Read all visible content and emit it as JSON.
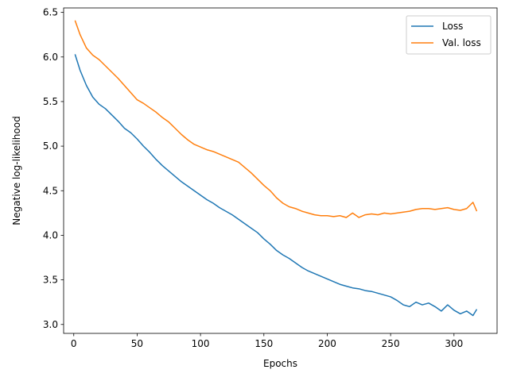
{
  "chart_data": {
    "type": "line",
    "title": "",
    "xlabel": "Epochs",
    "ylabel": "Negative log-likelihood",
    "xlim": [
      -8,
      334
    ],
    "ylim": [
      2.9,
      6.55
    ],
    "xticks": [
      0,
      50,
      100,
      150,
      200,
      250,
      300
    ],
    "yticks": [
      3.0,
      3.5,
      4.0,
      4.5,
      5.0,
      5.5,
      6.0,
      6.5
    ],
    "grid": false,
    "legend_position": "top-right",
    "series": [
      {
        "name": "Loss",
        "color": "#1f77b4",
        "x": [
          1,
          5,
          10,
          15,
          20,
          25,
          30,
          35,
          40,
          45,
          50,
          55,
          60,
          65,
          70,
          75,
          80,
          85,
          90,
          95,
          100,
          105,
          110,
          115,
          120,
          125,
          130,
          135,
          140,
          145,
          150,
          155,
          160,
          165,
          170,
          175,
          180,
          185,
          190,
          195,
          200,
          205,
          210,
          215,
          220,
          225,
          230,
          235,
          240,
          245,
          250,
          255,
          260,
          265,
          270,
          275,
          280,
          285,
          290,
          295,
          300,
          305,
          310,
          315,
          318
        ],
        "y": [
          6.03,
          5.85,
          5.68,
          5.55,
          5.47,
          5.42,
          5.35,
          5.28,
          5.2,
          5.15,
          5.08,
          5.0,
          4.93,
          4.85,
          4.78,
          4.72,
          4.66,
          4.6,
          4.55,
          4.5,
          4.45,
          4.4,
          4.36,
          4.31,
          4.27,
          4.23,
          4.18,
          4.13,
          4.08,
          4.03,
          3.96,
          3.9,
          3.83,
          3.78,
          3.74,
          3.69,
          3.64,
          3.6,
          3.57,
          3.54,
          3.51,
          3.48,
          3.45,
          3.43,
          3.41,
          3.4,
          3.38,
          3.37,
          3.35,
          3.33,
          3.31,
          3.27,
          3.22,
          3.2,
          3.25,
          3.22,
          3.24,
          3.2,
          3.15,
          3.22,
          3.16,
          3.12,
          3.15,
          3.1,
          3.17
        ]
      },
      {
        "name": "Val. loss",
        "color": "#ff7f0e",
        "x": [
          1,
          5,
          10,
          15,
          20,
          25,
          30,
          35,
          40,
          45,
          50,
          55,
          60,
          65,
          70,
          75,
          80,
          85,
          90,
          95,
          100,
          105,
          110,
          115,
          120,
          125,
          130,
          135,
          140,
          145,
          150,
          155,
          160,
          165,
          170,
          175,
          180,
          185,
          190,
          195,
          200,
          205,
          210,
          215,
          220,
          225,
          230,
          235,
          240,
          245,
          250,
          255,
          260,
          265,
          270,
          275,
          280,
          285,
          290,
          295,
          300,
          305,
          310,
          315,
          318
        ],
        "y": [
          6.41,
          6.25,
          6.1,
          6.02,
          5.97,
          5.9,
          5.83,
          5.76,
          5.68,
          5.6,
          5.52,
          5.48,
          5.43,
          5.38,
          5.32,
          5.27,
          5.2,
          5.13,
          5.07,
          5.02,
          4.99,
          4.96,
          4.94,
          4.91,
          4.88,
          4.85,
          4.82,
          4.76,
          4.7,
          4.63,
          4.56,
          4.5,
          4.42,
          4.36,
          4.32,
          4.3,
          4.27,
          4.25,
          4.23,
          4.22,
          4.22,
          4.21,
          4.22,
          4.2,
          4.25,
          4.2,
          4.23,
          4.24,
          4.23,
          4.25,
          4.24,
          4.25,
          4.26,
          4.27,
          4.29,
          4.3,
          4.3,
          4.29,
          4.3,
          4.31,
          4.29,
          4.28,
          4.3,
          4.37,
          4.27
        ]
      }
    ]
  }
}
